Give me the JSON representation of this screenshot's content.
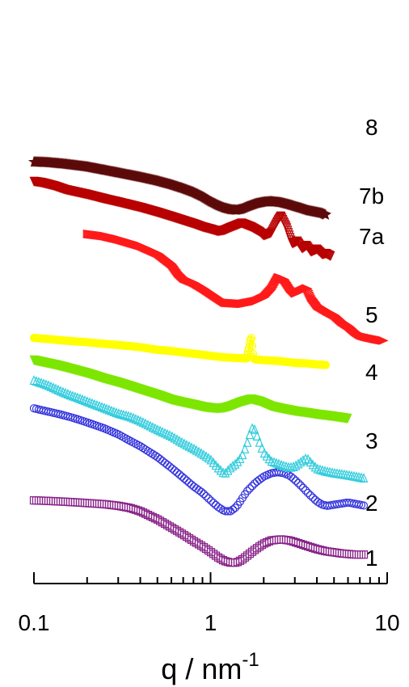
{
  "chart_data": {
    "type": "scatter",
    "xscale": "log",
    "xlim": [
      0.1,
      10
    ],
    "xlabel": "q / nm",
    "xlabel_sup": "-1",
    "x_ticks": [
      {
        "value": 0.1,
        "label": "0.1"
      },
      {
        "value": 1,
        "label": "1"
      },
      {
        "value": 10,
        "label": "10"
      }
    ],
    "y_axis_visible": false,
    "grid": false,
    "note": "",
    "series": [
      {
        "name": "8",
        "color": "#5c0a0a",
        "marker": "star",
        "stride": 1,
        "x": [
          0.1,
          0.12,
          0.15,
          0.2,
          0.25,
          0.3,
          0.4,
          0.5,
          0.6,
          0.7,
          0.8,
          0.9,
          1.0,
          1.1,
          1.2,
          1.3,
          1.4,
          1.5,
          1.6,
          1.8,
          2.0,
          2.2,
          2.5,
          2.8,
          3.0,
          3.3,
          3.6,
          4.0,
          4.3,
          4.5
        ],
        "y": [
          8.95,
          8.94,
          8.91,
          8.86,
          8.8,
          8.75,
          8.67,
          8.6,
          8.53,
          8.46,
          8.39,
          8.31,
          8.22,
          8.15,
          8.1,
          8.07,
          8.06,
          8.08,
          8.12,
          8.18,
          8.21,
          8.22,
          8.2,
          8.16,
          8.13,
          8.09,
          8.05,
          8.02,
          8.0,
          7.97
        ]
      },
      {
        "name": "7b",
        "color": "#b80000",
        "marker": "triangle-down",
        "stride": 1,
        "x": [
          0.1,
          0.11,
          0.13,
          0.15,
          0.2,
          0.25,
          0.3,
          0.4,
          0.5,
          0.6,
          0.7,
          0.8,
          0.9,
          1.0,
          1.1,
          1.2,
          1.3,
          1.5,
          1.7,
          1.9,
          2.0,
          2.2,
          2.4,
          2.5,
          2.7,
          2.9,
          3.1,
          3.3,
          3.5,
          3.7,
          4.0,
          4.3,
          4.5,
          4.8
        ],
        "y": [
          8.6,
          8.58,
          8.52,
          8.45,
          8.36,
          8.28,
          8.22,
          8.12,
          8.03,
          7.95,
          7.88,
          7.82,
          7.76,
          7.72,
          7.68,
          7.7,
          7.75,
          7.83,
          7.76,
          7.67,
          7.6,
          7.65,
          7.88,
          7.97,
          7.75,
          7.45,
          7.5,
          7.36,
          7.42,
          7.3,
          7.35,
          7.25,
          7.27,
          7.22
        ]
      },
      {
        "name": "7a",
        "color": "#ff1a1a",
        "marker": "triangle-right",
        "stride": 1,
        "x": [
          0.2,
          0.25,
          0.3,
          0.4,
          0.5,
          0.6,
          0.65,
          0.7,
          0.8,
          0.9,
          1.0,
          1.1,
          1.2,
          1.5,
          1.8,
          2.0,
          2.2,
          2.4,
          2.6,
          2.8,
          3.0,
          3.2,
          3.5,
          3.7,
          4.0,
          4.5,
          5.0,
          5.5,
          6.0,
          6.5,
          7.0,
          7.5,
          8.5,
          9.5
        ],
        "y": [
          7.62,
          7.58,
          7.52,
          7.4,
          7.26,
          7.06,
          6.9,
          6.8,
          6.72,
          6.62,
          6.52,
          6.43,
          6.35,
          6.33,
          6.38,
          6.45,
          6.6,
          6.82,
          6.78,
          6.62,
          6.52,
          6.56,
          6.62,
          6.45,
          6.3,
          6.2,
          6.12,
          6.0,
          5.92,
          5.82,
          5.75,
          5.72,
          5.68,
          5.65
        ]
      },
      {
        "name": "5",
        "color": "#ffff00",
        "marker": "circle-plus",
        "stride": 1,
        "x": [
          0.1,
          0.12,
          0.15,
          0.2,
          0.25,
          0.3,
          0.4,
          0.5,
          0.6,
          0.7,
          0.8,
          0.9,
          1.0,
          1.2,
          1.4,
          1.6,
          1.7,
          1.75,
          1.8,
          2.0,
          2.5,
          3.0,
          3.5,
          4.0,
          4.5
        ],
        "y": [
          5.7,
          5.68,
          5.65,
          5.62,
          5.59,
          5.57,
          5.53,
          5.48,
          5.46,
          5.43,
          5.41,
          5.39,
          5.37,
          5.34,
          5.33,
          5.32,
          5.72,
          5.32,
          5.3,
          5.29,
          5.27,
          5.24,
          5.23,
          5.21,
          5.2
        ]
      },
      {
        "name": "4",
        "color": "#7ce600",
        "marker": "triangle-down",
        "stride": 1,
        "x": [
          0.1,
          0.11,
          0.13,
          0.15,
          0.2,
          0.25,
          0.3,
          0.4,
          0.5,
          0.6,
          0.7,
          0.8,
          0.9,
          1.0,
          1.1,
          1.2,
          1.3,
          1.5,
          1.7,
          1.9,
          2.2,
          2.5,
          3.0,
          3.5,
          4.0,
          4.5,
          5.0,
          5.5,
          6.0
        ],
        "y": [
          5.3,
          5.27,
          5.22,
          5.17,
          5.06,
          4.96,
          4.89,
          4.76,
          4.66,
          4.57,
          4.52,
          4.48,
          4.44,
          4.42,
          4.41,
          4.42,
          4.45,
          4.53,
          4.58,
          4.54,
          4.45,
          4.41,
          4.36,
          4.33,
          4.3,
          4.28,
          4.26,
          4.24,
          4.22
        ]
      },
      {
        "name": "3",
        "color": "#33ccdd",
        "marker": "triangle-up",
        "stride": 3,
        "x": [
          0.1,
          0.12,
          0.14,
          0.16,
          0.18,
          0.2,
          0.25,
          0.3,
          0.35,
          0.4,
          0.5,
          0.6,
          0.7,
          0.8,
          0.9,
          1.0,
          1.1,
          1.2,
          1.3,
          1.4,
          1.5,
          1.6,
          1.7,
          1.75,
          1.8,
          1.9,
          2.0,
          2.2,
          2.5,
          2.8,
          3.0,
          3.3,
          3.5,
          3.8,
          4.0,
          4.5,
          5.0,
          5.5,
          6.0,
          6.5,
          7.0,
          7.5
        ],
        "y": [
          4.91,
          4.82,
          4.72,
          4.64,
          4.58,
          4.52,
          4.4,
          4.3,
          4.24,
          4.16,
          4.0,
          3.88,
          3.75,
          3.65,
          3.55,
          3.45,
          3.3,
          3.18,
          3.3,
          3.38,
          3.5,
          3.72,
          4.0,
          4.06,
          3.95,
          3.75,
          3.58,
          3.42,
          3.35,
          3.3,
          3.32,
          3.42,
          3.48,
          3.35,
          3.28,
          3.23,
          3.2,
          3.18,
          3.16,
          3.14,
          3.12,
          3.1
        ]
      },
      {
        "name": "2",
        "color": "#3333dd",
        "marker": "circle",
        "stride": 3,
        "x": [
          0.1,
          0.12,
          0.14,
          0.16,
          0.18,
          0.2,
          0.25,
          0.3,
          0.35,
          0.4,
          0.5,
          0.6,
          0.7,
          0.8,
          0.9,
          1.0,
          1.1,
          1.2,
          1.3,
          1.4,
          1.5,
          1.6,
          1.8,
          2.0,
          2.2,
          2.4,
          2.6,
          2.8,
          3.0,
          3.3,
          3.6,
          4.0,
          4.3,
          4.6,
          5.0,
          5.5,
          6.0,
          6.5,
          7.0,
          7.5
        ],
        "y": [
          4.4,
          4.34,
          4.29,
          4.24,
          4.19,
          4.14,
          4.03,
          3.92,
          3.8,
          3.7,
          3.5,
          3.3,
          3.12,
          2.96,
          2.84,
          2.7,
          2.58,
          2.5,
          2.5,
          2.58,
          2.72,
          2.86,
          3.03,
          3.14,
          3.2,
          3.22,
          3.2,
          3.16,
          3.08,
          2.95,
          2.82,
          2.68,
          2.62,
          2.6,
          2.62,
          2.64,
          2.66,
          2.64,
          2.62,
          2.6
        ]
      },
      {
        "name": "1",
        "color": "#882288",
        "marker": "square",
        "stride": 3,
        "x": [
          0.1,
          0.12,
          0.14,
          0.16,
          0.18,
          0.2,
          0.25,
          0.3,
          0.35,
          0.4,
          0.45,
          0.5,
          0.6,
          0.7,
          0.8,
          0.9,
          1.0,
          1.1,
          1.2,
          1.3,
          1.4,
          1.5,
          1.6,
          1.8,
          2.0,
          2.2,
          2.5,
          2.8,
          3.0,
          3.5,
          4.0,
          4.5,
          5.0,
          5.5,
          6.0,
          6.5,
          7.0,
          7.5
        ],
        "y": [
          2.7,
          2.69,
          2.68,
          2.67,
          2.66,
          2.65,
          2.63,
          2.6,
          2.56,
          2.5,
          2.42,
          2.35,
          2.2,
          2.07,
          1.95,
          1.85,
          1.75,
          1.65,
          1.58,
          1.55,
          1.55,
          1.6,
          1.67,
          1.8,
          1.9,
          1.96,
          1.98,
          1.96,
          1.93,
          1.86,
          1.8,
          1.76,
          1.74,
          1.72,
          1.71,
          1.7,
          1.7,
          1.7
        ]
      }
    ]
  }
}
